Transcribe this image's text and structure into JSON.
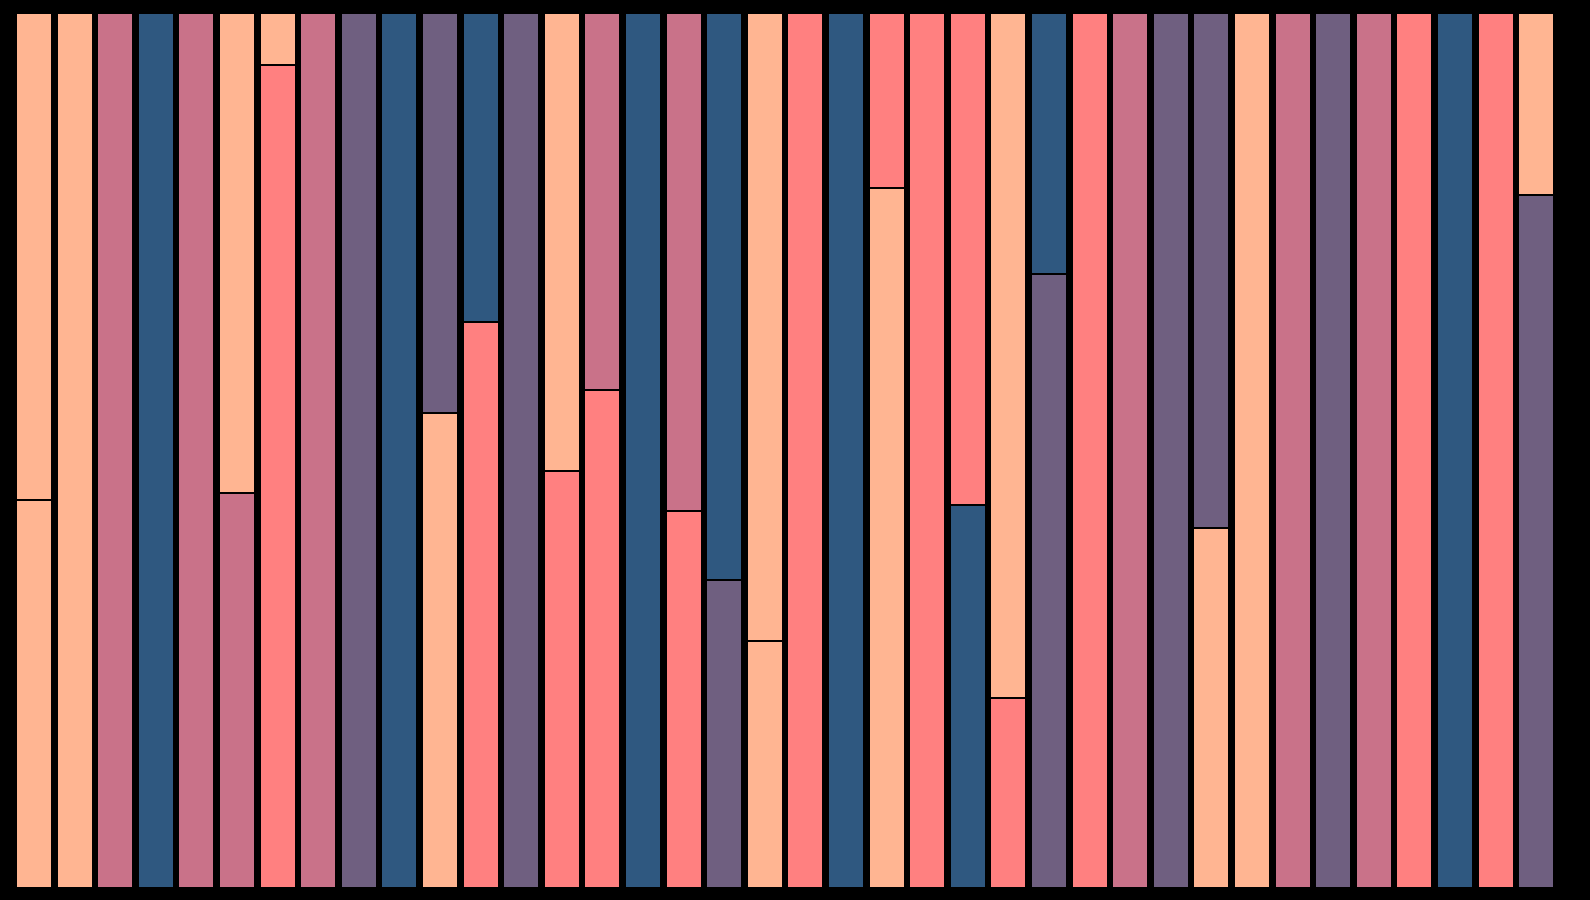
{
  "palette": {
    "peach": "#FFB592",
    "rose": "#C97289",
    "navy": "#2F5880",
    "coral": "#FF8080",
    "plum": "#6F5F80",
    "border": "#000000"
  },
  "columns": [
    [
      [
        "peach",
        0.557
      ],
      [
        "peach",
        0.443
      ]
    ],
    [
      [
        "peach",
        1.0
      ]
    ],
    [
      [
        "rose",
        1.0
      ]
    ],
    [
      [
        "navy",
        1.0
      ]
    ],
    [
      [
        "rose",
        1.0
      ]
    ],
    [
      [
        "peach",
        0.549
      ],
      [
        "rose",
        0.451
      ]
    ],
    [
      [
        "peach",
        0.057
      ],
      [
        "coral",
        0.943
      ]
    ],
    [
      [
        "rose",
        1.0
      ]
    ],
    [
      [
        "plum",
        1.0
      ]
    ],
    [
      [
        "navy",
        1.0
      ]
    ],
    [
      [
        "plum",
        0.457
      ],
      [
        "peach",
        0.543
      ]
    ],
    [
      [
        "navy",
        0.352
      ],
      [
        "coral",
        0.648
      ]
    ],
    [
      [
        "plum",
        1.0
      ]
    ],
    [
      [
        "peach",
        0.523
      ],
      [
        "coral",
        0.477
      ]
    ],
    [
      [
        "rose",
        0.43
      ],
      [
        "coral",
        0.57
      ]
    ],
    [
      [
        "navy",
        1.0
      ]
    ],
    [
      [
        "rose",
        0.569
      ],
      [
        "coral",
        0.431
      ]
    ],
    [
      [
        "navy",
        0.649
      ],
      [
        "plum",
        0.351
      ]
    ],
    [
      [
        "peach",
        0.719
      ],
      [
        "peach",
        0.281
      ]
    ],
    [
      [
        "coral",
        1.0
      ]
    ],
    [
      [
        "navy",
        1.0
      ]
    ],
    [
      [
        "coral",
        0.198
      ],
      [
        "peach",
        0.802
      ]
    ],
    [
      [
        "coral",
        1.0
      ]
    ],
    [
      [
        "coral",
        0.563
      ],
      [
        "navy",
        0.437
      ]
    ],
    [
      [
        "peach",
        0.784
      ],
      [
        "coral",
        0.216
      ]
    ],
    [
      [
        "navy",
        0.297
      ],
      [
        "plum",
        0.703
      ]
    ],
    [
      [
        "coral",
        1.0
      ]
    ],
    [
      [
        "rose",
        1.0
      ]
    ],
    [
      [
        "plum",
        1.0
      ]
    ],
    [
      [
        "plum",
        0.589
      ],
      [
        "peach",
        0.411
      ]
    ],
    [
      [
        "peach",
        1.0
      ]
    ],
    [
      [
        "rose",
        1.0
      ]
    ],
    [
      [
        "plum",
        1.0
      ]
    ],
    [
      [
        "rose",
        1.0
      ]
    ],
    [
      [
        "coral",
        1.0
      ]
    ],
    [
      [
        "navy",
        1.0
      ]
    ],
    [
      [
        "coral",
        1.0
      ]
    ],
    [
      [
        "peach",
        0.207
      ],
      [
        "plum",
        0.793
      ]
    ]
  ]
}
